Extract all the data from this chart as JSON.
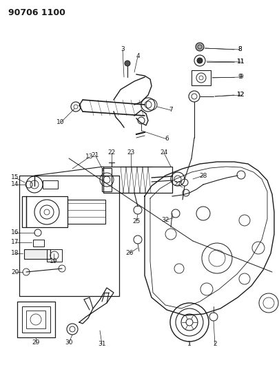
{
  "title": "90706 1100",
  "bg_color": "#ffffff",
  "line_color": "#1a1a1a",
  "figsize": [
    4.05,
    5.33
  ],
  "dpi": 100
}
